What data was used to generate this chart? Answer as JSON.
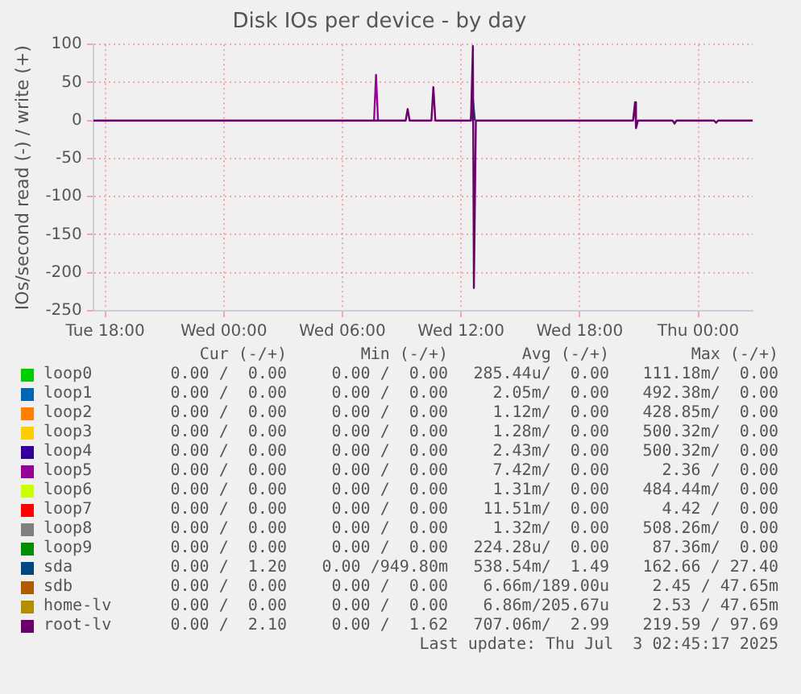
{
  "chart_data": {
    "type": "line",
    "title": "Disk IOs per device - by day",
    "ylabel": "IOs/second read (-) / write (+)",
    "xlim": [
      "2025-07-01T17:24",
      "2025-07-03T02:45"
    ],
    "xticks": [
      {
        "value": "2025-07-01T18:00",
        "label": "Tue 18:00"
      },
      {
        "value": "2025-07-02T00:00",
        "label": "Wed 00:00"
      },
      {
        "value": "2025-07-02T06:00",
        "label": "Wed 06:00"
      },
      {
        "value": "2025-07-02T12:00",
        "label": "Wed 12:00"
      },
      {
        "value": "2025-07-02T18:00",
        "label": "Wed 18:00"
      },
      {
        "value": "2025-07-03T00:00",
        "label": "Thu 00:00"
      }
    ],
    "ylim": [
      -250,
      100
    ],
    "yticks": [
      -250,
      -200,
      -150,
      -100,
      -50,
      0,
      50,
      100
    ],
    "grid": true,
    "legend": "bottom",
    "marker": "none",
    "line_style": "solid",
    "series": [
      {
        "name": "loop0",
        "color": "#00cc00"
      },
      {
        "name": "loop1",
        "color": "#0066b3"
      },
      {
        "name": "loop2",
        "color": "#ff8000"
      },
      {
        "name": "loop3",
        "color": "#ffcc00"
      },
      {
        "name": "loop4",
        "color": "#330099"
      },
      {
        "name": "loop5",
        "color": "#990099",
        "x": [
          "2025-07-02T07:36",
          "2025-07-02T07:42",
          "2025-07-02T07:48"
        ],
        "values": [
          0,
          60,
          0
        ]
      },
      {
        "name": "loop6",
        "color": "#ccff00"
      },
      {
        "name": "loop7",
        "color": "#ff0000"
      },
      {
        "name": "loop8",
        "color": "#808080"
      },
      {
        "name": "loop9",
        "color": "#008f00"
      },
      {
        "name": "sda",
        "color": "#00487d",
        "x": [
          "2025-07-02T12:30",
          "2025-07-02T12:36",
          "2025-07-02T12:42"
        ],
        "values": [
          0,
          28,
          0
        ]
      },
      {
        "name": "sdb",
        "color": "#b35a00"
      },
      {
        "name": "home-lv",
        "color": "#b38f00"
      },
      {
        "name": "root-lv",
        "color": "#6b006b",
        "x": [
          "2025-07-01T17:24",
          "2025-07-02T09:12",
          "2025-07-02T09:18",
          "2025-07-02T09:24",
          "2025-07-02T10:30",
          "2025-07-02T10:36",
          "2025-07-02T10:42",
          "2025-07-02T12:30",
          "2025-07-02T12:36",
          "2025-07-02T12:39",
          "2025-07-02T12:45",
          "2025-07-02T20:42",
          "2025-07-02T20:48",
          "2025-07-02T20:51",
          "2025-07-02T20:57",
          "2025-07-02T22:42",
          "2025-07-02T22:48",
          "2025-07-02T22:54",
          "2025-07-03T00:48",
          "2025-07-03T00:54",
          "2025-07-03T01:00",
          "2025-07-03T02:45"
        ],
        "values": [
          0,
          0,
          15,
          0,
          0,
          44,
          0,
          0,
          98,
          -220,
          0,
          0,
          24,
          -10,
          0,
          0,
          -4,
          0,
          0,
          -3,
          0,
          0
        ]
      }
    ],
    "annotations": [
      "Cur (-/+)",
      "Min (-/+)",
      "Avg (-/+)",
      "Max (-/+)",
      "0.00 /  0.00",
      "0.00 /  0.00",
      "285.44u/  0.00",
      "111.18m/  0.00",
      "0.00 /  0.00",
      "0.00 /  0.00",
      "2.05m/  0.00",
      "492.38m/  0.00",
      "0.00 /  0.00",
      "0.00 /  0.00",
      "1.12m/  0.00",
      "428.85m/  0.00",
      "0.00 /  0.00",
      "0.00 /  0.00",
      "1.28m/  0.00",
      "500.32m/  0.00",
      "0.00 /  0.00",
      "0.00 /  0.00",
      "2.43m/  0.00",
      "500.32m/  0.00",
      "0.00 /  0.00",
      "0.00 /  0.00",
      "7.42m/  0.00",
      "2.36 /  0.00",
      "0.00 /  0.00",
      "0.00 /  0.00",
      "1.31m/  0.00",
      "484.44m/  0.00",
      "0.00 /  0.00",
      "0.00 /  0.00",
      "11.51m/  0.00",
      "4.42 /  0.00",
      "0.00 /  0.00",
      "0.00 /  0.00",
      "1.32m/  0.00",
      "508.26m/  0.00",
      "0.00 /  0.00",
      "0.00 /  0.00",
      "224.28u/  0.00",
      "87.36m/  0.00",
      "0.00 /  1.20",
      "0.00 /949.80m",
      "538.54m/  1.49",
      "162.66 / 27.40",
      "0.00 /  0.00",
      "0.00 /  0.00",
      "6.66m/189.00u",
      "2.45 / 47.65m",
      "0.00 /  0.00",
      "0.00 /  0.00",
      "6.86m/205.67u",
      "2.53 / 47.65m",
      "0.00 /  2.10",
      "0.00 /  1.62",
      "707.06m/  2.99",
      "219.59 / 97.69",
      "Last update: Thu Jul  3 02:45:17 2025"
    ]
  }
}
